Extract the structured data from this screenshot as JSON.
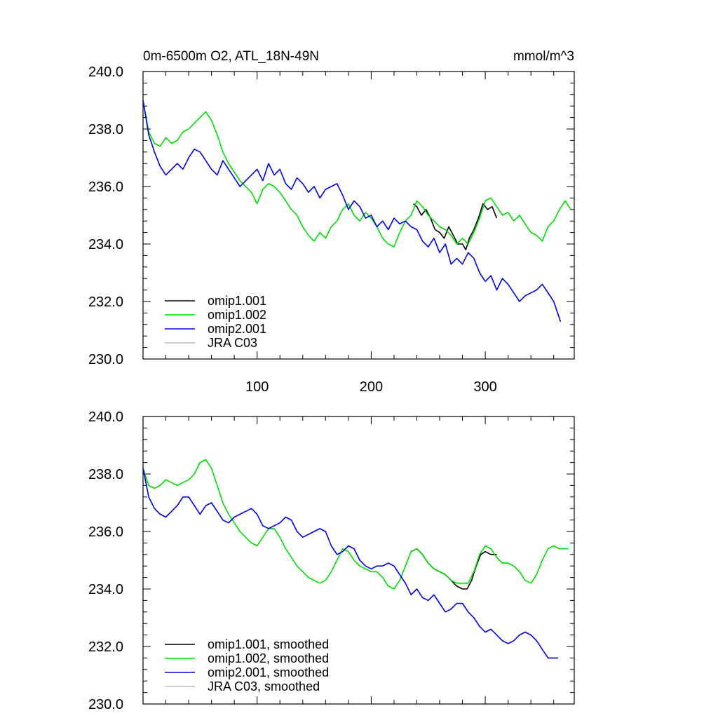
{
  "chart_data": [
    {
      "type": "line",
      "title": "0m-6500m O2, ATL_18N-49N",
      "units": "mmol/m^3",
      "xlim": [
        0,
        378
      ],
      "ylim": [
        230.0,
        240.0
      ],
      "xticks": [
        100,
        200,
        300
      ],
      "xtick_labels": [
        "100",
        "200",
        "300"
      ],
      "yticks": [
        230.0,
        232.0,
        234.0,
        236.0,
        238.0,
        240.0
      ],
      "ytick_labels": [
        "230.0",
        "232.0",
        "234.0",
        "236.0",
        "238.0",
        "240.0"
      ],
      "legend_position": "lower-left",
      "series": [
        {
          "name": "omip1.001",
          "color": "#000000",
          "x": [
            237,
            240,
            244,
            248,
            252,
            256,
            260,
            264,
            268,
            272,
            276,
            280,
            283,
            286,
            290,
            294,
            298,
            302,
            306,
            310
          ],
          "y": [
            235.4,
            235.3,
            235.0,
            235.2,
            234.9,
            234.5,
            234.4,
            234.2,
            234.6,
            234.3,
            234.0,
            234.0,
            233.8,
            234.2,
            234.5,
            234.9,
            235.4,
            235.2,
            235.3,
            234.9
          ]
        },
        {
          "name": "omip1.002",
          "color": "#00dd00",
          "x": [
            0,
            5,
            10,
            15,
            20,
            25,
            30,
            35,
            40,
            45,
            50,
            55,
            60,
            65,
            70,
            75,
            80,
            85,
            90,
            95,
            100,
            105,
            110,
            115,
            120,
            125,
            130,
            135,
            140,
            145,
            150,
            155,
            160,
            165,
            170,
            175,
            180,
            185,
            190,
            195,
            200,
            205,
            210,
            215,
            220,
            225,
            230,
            235,
            240,
            245,
            250,
            255,
            260,
            265,
            270,
            275,
            280,
            285,
            290,
            295,
            300,
            305,
            310,
            315,
            320,
            325,
            330,
            335,
            340,
            345,
            350,
            355,
            360,
            365,
            370,
            375
          ],
          "y": [
            239.0,
            237.9,
            237.5,
            237.4,
            237.7,
            237.5,
            237.6,
            237.9,
            238.0,
            238.2,
            238.4,
            238.6,
            238.3,
            237.8,
            237.2,
            236.8,
            236.5,
            236.2,
            236.0,
            235.8,
            235.4,
            235.9,
            236.1,
            236.0,
            235.8,
            235.5,
            235.2,
            235.0,
            234.6,
            234.3,
            234.1,
            234.4,
            234.2,
            234.6,
            234.8,
            235.2,
            235.4,
            235.0,
            234.8,
            235.1,
            234.9,
            234.6,
            234.2,
            234.0,
            233.9,
            234.4,
            234.8,
            235.0,
            235.5,
            235.3,
            235.0,
            234.8,
            234.6,
            234.5,
            234.3,
            234.0,
            234.2,
            234.0,
            234.4,
            234.9,
            235.5,
            235.6,
            235.3,
            235.0,
            235.1,
            234.8,
            235.0,
            234.7,
            234.4,
            234.3,
            234.1,
            234.6,
            234.8,
            235.2,
            235.5,
            235.2
          ]
        },
        {
          "name": "omip2.001",
          "color": "#0000dd",
          "x": [
            0,
            5,
            10,
            15,
            20,
            25,
            30,
            35,
            40,
            45,
            50,
            55,
            60,
            65,
            70,
            75,
            80,
            85,
            90,
            95,
            100,
            105,
            110,
            115,
            120,
            125,
            130,
            135,
            140,
            145,
            150,
            155,
            160,
            165,
            170,
            175,
            180,
            185,
            190,
            195,
            200,
            205,
            210,
            215,
            220,
            225,
            230,
            235,
            240,
            245,
            250,
            255,
            260,
            265,
            270,
            275,
            280,
            285,
            290,
            295,
            300,
            305,
            310,
            315,
            320,
            325,
            330,
            335,
            340,
            345,
            350,
            355,
            360,
            366
          ],
          "y": [
            239.0,
            237.8,
            237.2,
            236.7,
            236.4,
            236.6,
            236.8,
            236.6,
            237.0,
            237.3,
            237.2,
            236.9,
            236.6,
            236.4,
            236.9,
            236.6,
            236.3,
            236.0,
            236.2,
            236.4,
            236.6,
            236.2,
            236.8,
            236.4,
            236.6,
            236.1,
            235.9,
            236.3,
            236.1,
            235.8,
            236.0,
            235.6,
            235.9,
            236.0,
            236.1,
            235.7,
            235.2,
            235.5,
            235.3,
            234.9,
            235.0,
            234.6,
            234.8,
            234.5,
            234.9,
            234.7,
            234.8,
            234.6,
            234.5,
            234.1,
            233.9,
            234.2,
            233.7,
            234.0,
            233.3,
            233.5,
            233.3,
            233.7,
            233.5,
            233.0,
            232.7,
            232.9,
            232.4,
            232.8,
            232.6,
            232.3,
            232.0,
            232.2,
            232.3,
            232.4,
            232.6,
            232.3,
            232.0,
            231.3
          ]
        },
        {
          "name": "JRA C03",
          "color": "#bbbbbb",
          "x": [],
          "y": []
        }
      ]
    },
    {
      "type": "line",
      "xlim": [
        0,
        378
      ],
      "ylim": [
        230.0,
        240.0
      ],
      "yticks": [
        230.0,
        232.0,
        234.0,
        236.0,
        238.0,
        240.0
      ],
      "ytick_labels": [
        "230.0",
        "232.0",
        "234.0",
        "236.0",
        "238.0",
        "240.0"
      ],
      "legend_position": "lower-left",
      "series": [
        {
          "name": "omip1.001, smoothed",
          "color": "#000000",
          "x": [
            235,
            240,
            245,
            250,
            255,
            260,
            265,
            270,
            275,
            280,
            284,
            288,
            292,
            296,
            300,
            305,
            310
          ],
          "y": [
            235.3,
            235.4,
            235.2,
            234.9,
            234.7,
            234.6,
            234.5,
            234.3,
            234.1,
            234.0,
            234.0,
            234.3,
            234.8,
            235.2,
            235.3,
            235.2,
            235.2
          ]
        },
        {
          "name": "omip1.002, smoothed",
          "color": "#00dd00",
          "x": [
            0,
            5,
            10,
            15,
            20,
            25,
            30,
            35,
            40,
            45,
            50,
            55,
            60,
            65,
            70,
            75,
            80,
            85,
            90,
            95,
            100,
            105,
            110,
            115,
            120,
            125,
            130,
            135,
            140,
            145,
            150,
            155,
            160,
            165,
            170,
            175,
            180,
            185,
            190,
            195,
            200,
            205,
            210,
            215,
            220,
            225,
            230,
            235,
            240,
            245,
            250,
            255,
            260,
            265,
            270,
            275,
            280,
            285,
            290,
            295,
            300,
            305,
            310,
            315,
            320,
            325,
            330,
            335,
            340,
            345,
            350,
            355,
            360,
            365,
            370,
            373
          ],
          "y": [
            238.2,
            237.6,
            237.5,
            237.6,
            237.8,
            237.7,
            237.6,
            237.7,
            237.8,
            238.0,
            238.4,
            238.5,
            238.2,
            237.6,
            237.0,
            236.6,
            236.3,
            236.0,
            235.8,
            235.6,
            235.5,
            235.8,
            236.1,
            236.1,
            235.8,
            235.4,
            235.1,
            234.8,
            234.6,
            234.4,
            234.3,
            234.2,
            234.3,
            234.6,
            235.0,
            235.4,
            235.3,
            235.0,
            234.8,
            234.7,
            234.6,
            234.6,
            234.4,
            234.1,
            234.0,
            234.3,
            234.8,
            235.3,
            235.4,
            235.2,
            234.9,
            234.7,
            234.6,
            234.5,
            234.3,
            234.2,
            234.2,
            234.2,
            234.6,
            235.2,
            235.5,
            235.4,
            235.1,
            234.9,
            234.9,
            234.8,
            234.6,
            234.3,
            234.2,
            234.5,
            235.0,
            235.4,
            235.5,
            235.4,
            235.4,
            235.4
          ]
        },
        {
          "name": "omip2.001, smoothed",
          "color": "#0000dd",
          "x": [
            0,
            5,
            10,
            15,
            20,
            25,
            30,
            35,
            40,
            45,
            50,
            55,
            60,
            65,
            70,
            75,
            80,
            85,
            90,
            95,
            100,
            105,
            110,
            115,
            120,
            125,
            130,
            135,
            140,
            145,
            150,
            155,
            160,
            165,
            170,
            175,
            180,
            185,
            190,
            195,
            200,
            205,
            210,
            215,
            220,
            225,
            230,
            235,
            240,
            245,
            250,
            255,
            260,
            265,
            270,
            275,
            280,
            285,
            290,
            295,
            300,
            305,
            310,
            315,
            320,
            325,
            330,
            335,
            340,
            345,
            350,
            355,
            360,
            364
          ],
          "y": [
            238.2,
            237.2,
            236.8,
            236.6,
            236.5,
            236.7,
            236.9,
            237.2,
            237.2,
            236.9,
            236.6,
            236.9,
            237.0,
            236.7,
            236.4,
            236.3,
            236.5,
            236.6,
            236.7,
            236.8,
            236.6,
            236.2,
            236.1,
            236.2,
            236.3,
            236.5,
            236.4,
            236.0,
            235.8,
            235.9,
            236.0,
            236.1,
            236.0,
            235.5,
            235.2,
            235.3,
            235.5,
            235.4,
            235.0,
            234.8,
            234.7,
            234.8,
            234.8,
            234.9,
            234.8,
            234.5,
            234.2,
            233.8,
            234.0,
            233.7,
            233.6,
            233.8,
            233.5,
            233.2,
            233.3,
            233.5,
            233.5,
            233.2,
            233.0,
            232.7,
            232.5,
            232.6,
            232.4,
            232.2,
            232.1,
            232.2,
            232.4,
            232.5,
            232.4,
            232.2,
            231.9,
            231.6,
            231.6,
            231.6
          ]
        },
        {
          "name": "JRA C03, smoothed",
          "color": "#bbbbbb",
          "x": [],
          "y": []
        }
      ]
    }
  ]
}
